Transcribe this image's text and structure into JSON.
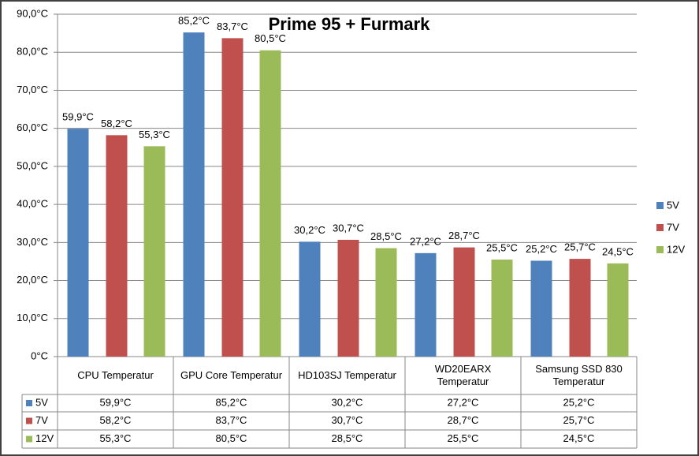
{
  "chart_data": {
    "type": "bar",
    "title": "Prime 95 + Furmark",
    "categories": [
      "CPU Temperatur",
      "GPU Core Temperatur",
      "HD103SJ Temperatur",
      "WD20EARX Temperatur",
      "Samsung SSD 830 Temperatur"
    ],
    "series": [
      {
        "name": "5V",
        "color": "#4f81bd",
        "values": [
          59.9,
          85.2,
          30.2,
          27.2,
          25.2
        ],
        "value_labels": [
          "59,9°C",
          "85,2°C",
          "30,2°C",
          "27,2°C",
          "25,2°C"
        ]
      },
      {
        "name": "7V",
        "color": "#c0504d",
        "values": [
          58.2,
          83.7,
          30.7,
          28.7,
          25.7
        ],
        "value_labels": [
          "58,2°C",
          "83,7°C",
          "30,7°C",
          "28,7°C",
          "25,7°C"
        ]
      },
      {
        "name": "12V",
        "color": "#9bbb59",
        "values": [
          55.3,
          80.5,
          28.5,
          25.5,
          24.5
        ],
        "value_labels": [
          "55,3°C",
          "80,5°C",
          "28,5°C",
          "25,5°C",
          "24,5°C"
        ]
      }
    ],
    "ylim": [
      0,
      90
    ],
    "yticks": [
      {
        "value": 0,
        "label": "0°C"
      },
      {
        "value": 10,
        "label": "10,0°C"
      },
      {
        "value": 20,
        "label": "20,0°C"
      },
      {
        "value": 30,
        "label": "30,0°C"
      },
      {
        "value": 40,
        "label": "40,0°C"
      },
      {
        "value": 50,
        "label": "50,0°C"
      },
      {
        "value": 60,
        "label": "60,0°C"
      },
      {
        "value": 70,
        "label": "70,0°C"
      },
      {
        "value": 80,
        "label": "80,0°C"
      },
      {
        "value": 90,
        "label": "90,0°C"
      }
    ],
    "grid": true,
    "legend": "right",
    "data_table": true
  }
}
